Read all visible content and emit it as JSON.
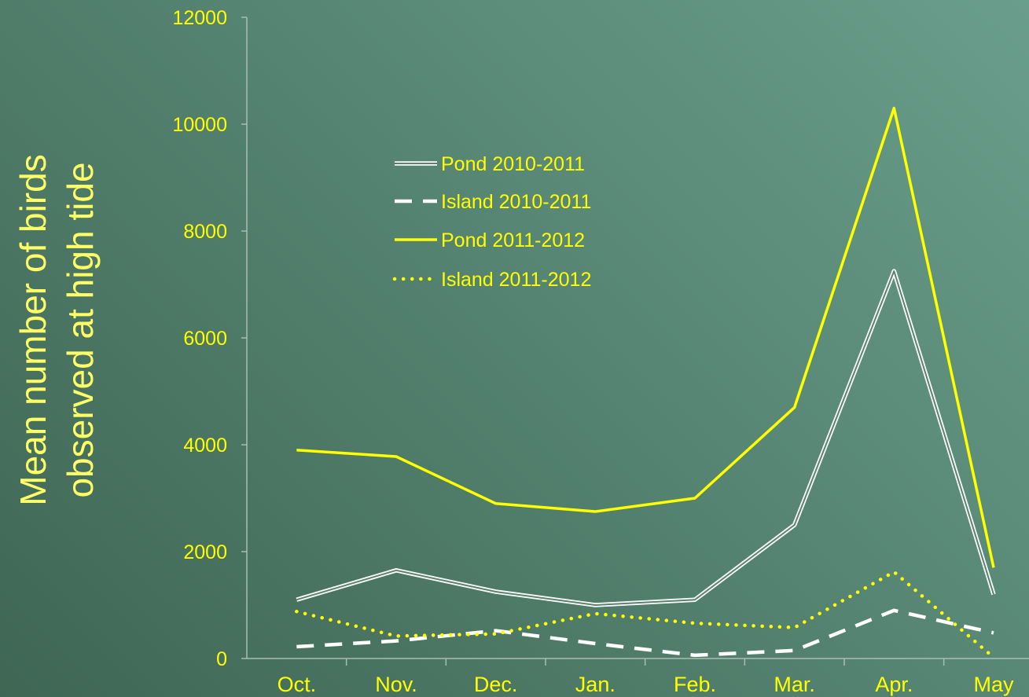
{
  "chart_data": {
    "type": "line",
    "title": "",
    "xlabel": "",
    "ylabel": [
      "Mean number of birds",
      "observed at high tide"
    ],
    "categories": [
      "Oct.",
      "Nov.",
      "Dec.",
      "Jan.",
      "Feb.",
      "Mar.",
      "Apr.",
      "May"
    ],
    "ylim": [
      0,
      12000
    ],
    "yticks": [
      0,
      2000,
      4000,
      6000,
      8000,
      10000,
      12000
    ],
    "grid": false,
    "legend_position": "upper-left",
    "series": [
      {
        "name": "Pond 2010-2011",
        "style": "double-white",
        "color": "#ffffff",
        "values": [
          1100,
          1650,
          1250,
          1000,
          1100,
          2500,
          7250,
          1200
        ]
      },
      {
        "name": "Island 2010-2011",
        "style": "dashed",
        "color": "#ffffff",
        "values": [
          220,
          330,
          520,
          280,
          60,
          150,
          900,
          480
        ]
      },
      {
        "name": "Pond 2011-2012",
        "style": "solid",
        "color": "#ffff00",
        "values": [
          3900,
          3780,
          2900,
          2750,
          3000,
          4700,
          10300,
          1700
        ]
      },
      {
        "name": "Island 2011-2012",
        "style": "dotted",
        "color": "#ffff00",
        "values": [
          880,
          420,
          460,
          840,
          660,
          580,
          1620,
          20
        ]
      }
    ],
    "colors": {
      "tick_text": "#ffff00",
      "axis": "#a9bdb3",
      "ylabel_text": "#ffff66"
    }
  }
}
